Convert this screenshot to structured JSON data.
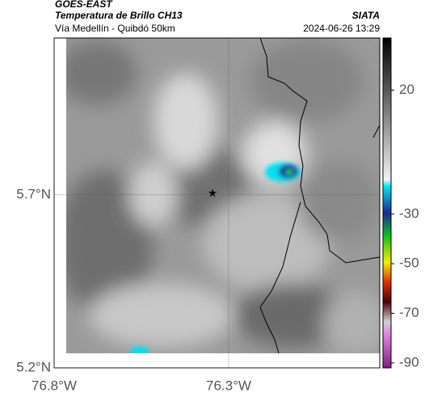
{
  "header": {
    "title": "GOES-EAST",
    "subtitle": "Temperatura de Brillo CH13",
    "route": "Vía Medellín - Quibdó 50km",
    "source": "SIATA",
    "datetime": "2024-06-26 13:29"
  },
  "map": {
    "lat_lim": [
      5.2,
      6.153
    ],
    "lon_lim": [
      -76.8,
      -75.867
    ],
    "lat_ticks": [
      {
        "value": 5.7,
        "label": "5.7°N"
      },
      {
        "value": 5.2,
        "label": "5.2°N"
      }
    ],
    "lon_ticks": [
      {
        "value": -76.8,
        "label": "76.8°W"
      },
      {
        "value": -76.3,
        "label": "76.3°W"
      }
    ]
  },
  "colorbar": {
    "lim": [
      -92,
      41
    ],
    "ticks": [
      20,
      -30,
      -50,
      -70,
      -90
    ]
  }
}
